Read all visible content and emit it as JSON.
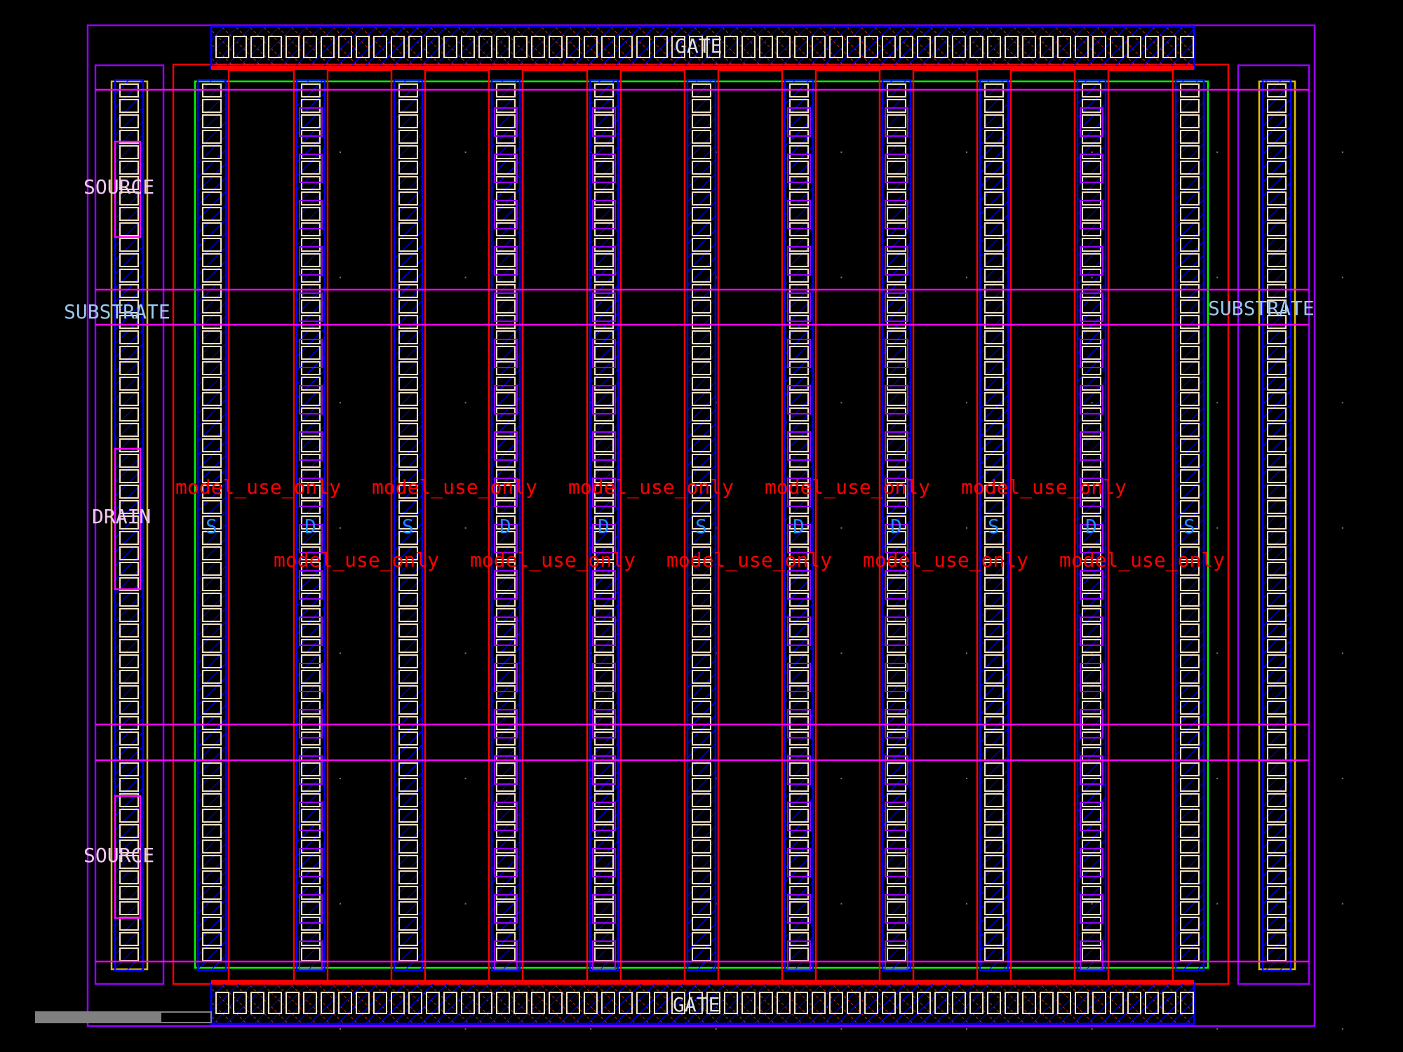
{
  "layout": {
    "labels": {
      "source_top": "SOURCE",
      "source_bottom": "SOURCE",
      "drain": "DRAIN",
      "substrate_left": "SUBSTRATE",
      "substrate_right": "SUBSTRATE",
      "gate_top": "GATE",
      "gate_bottom": "GATE"
    },
    "finger_terminals": [
      "S",
      "D",
      "S",
      "D",
      "D",
      "S",
      "D",
      "D",
      "S",
      "D",
      "S"
    ],
    "model_label": "model_use_only",
    "model_label_count": 10
  },
  "colors": {
    "background": "#000000",
    "metal1": "#0000ff",
    "poly": "#ff0000",
    "diffusion": "#00ff00",
    "contact": "#f0e0c0",
    "well": "#9900ff",
    "metal_outline": "#ff00ff",
    "label_light": "#f4c8f4",
    "label_substrate": "#9cc8f0",
    "label_terminal": "#1e90ff",
    "label_model": "#ff0000",
    "scale_bar": "#808080",
    "tap": "#e0c000"
  }
}
